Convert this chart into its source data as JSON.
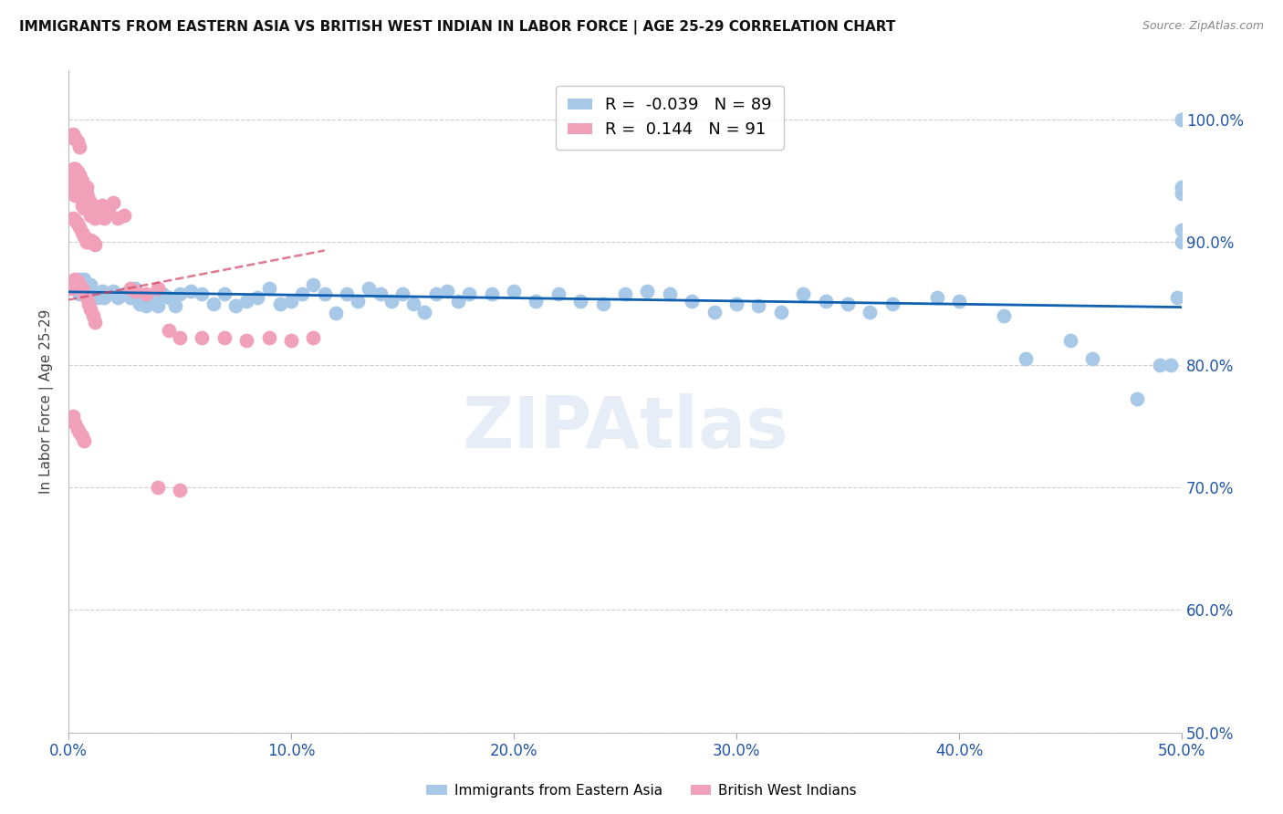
{
  "title": "IMMIGRANTS FROM EASTERN ASIA VS BRITISH WEST INDIAN IN LABOR FORCE | AGE 25-29 CORRELATION CHART",
  "source": "Source: ZipAtlas.com",
  "ylabel": "In Labor Force | Age 25-29",
  "legend_label1": "Immigrants from Eastern Asia",
  "legend_label2": "British West Indians",
  "R1": -0.039,
  "N1": 89,
  "R2": 0.144,
  "N2": 91,
  "color_blue": "#a8c8e8",
  "color_pink": "#f0a0b8",
  "line_blue": "#1060b0",
  "line_pink": "#d04060",
  "xlim": [
    0.0,
    0.5
  ],
  "ylim": [
    0.5,
    1.04
  ],
  "yticks": [
    0.5,
    0.6,
    0.7,
    0.8,
    0.9,
    1.0
  ],
  "xticks": [
    0.0,
    0.1,
    0.2,
    0.3,
    0.4,
    0.5
  ],
  "ytick_labels": [
    "50.0%",
    "60.0%",
    "70.0%",
    "80.0%",
    "90.0%",
    "100.0%"
  ],
  "xtick_labels": [
    "0.0%",
    "10.0%",
    "20.0%",
    "30.0%",
    "40.0%",
    "50.0%"
  ],
  "blue_x": [
    0.003,
    0.004,
    0.005,
    0.005,
    0.006,
    0.007,
    0.008,
    0.008,
    0.009,
    0.01,
    0.012,
    0.013,
    0.015,
    0.016,
    0.018,
    0.02,
    0.022,
    0.025,
    0.028,
    0.03,
    0.032,
    0.035,
    0.038,
    0.04,
    0.042,
    0.045,
    0.048,
    0.05,
    0.055,
    0.06,
    0.065,
    0.07,
    0.075,
    0.08,
    0.085,
    0.09,
    0.095,
    0.1,
    0.105,
    0.11,
    0.115,
    0.12,
    0.125,
    0.13,
    0.135,
    0.14,
    0.145,
    0.15,
    0.155,
    0.16,
    0.165,
    0.17,
    0.175,
    0.18,
    0.19,
    0.2,
    0.21,
    0.22,
    0.23,
    0.24,
    0.25,
    0.26,
    0.27,
    0.28,
    0.29,
    0.3,
    0.31,
    0.32,
    0.33,
    0.34,
    0.35,
    0.36,
    0.37,
    0.39,
    0.4,
    0.42,
    0.43,
    0.45,
    0.46,
    0.48,
    0.49,
    0.495,
    0.498,
    0.5,
    0.5,
    0.5,
    0.5,
    0.5,
    0.5
  ],
  "blue_y": [
    0.868,
    0.862,
    0.87,
    0.858,
    0.863,
    0.87,
    0.862,
    0.858,
    0.86,
    0.865,
    0.858,
    0.855,
    0.86,
    0.855,
    0.858,
    0.86,
    0.855,
    0.858,
    0.855,
    0.862,
    0.85,
    0.848,
    0.852,
    0.848,
    0.858,
    0.855,
    0.848,
    0.858,
    0.86,
    0.858,
    0.85,
    0.858,
    0.848,
    0.852,
    0.855,
    0.862,
    0.85,
    0.852,
    0.858,
    0.865,
    0.858,
    0.842,
    0.858,
    0.852,
    0.862,
    0.858,
    0.852,
    0.858,
    0.85,
    0.843,
    0.858,
    0.86,
    0.852,
    0.858,
    0.858,
    0.86,
    0.852,
    0.858,
    0.852,
    0.85,
    0.858,
    0.86,
    0.858,
    0.852,
    0.843,
    0.85,
    0.848,
    0.843,
    0.858,
    0.852,
    0.85,
    0.843,
    0.85,
    0.855,
    0.852,
    0.84,
    0.805,
    0.82,
    0.805,
    0.772,
    0.8,
    0.8,
    0.855,
    1.0,
    1.0,
    0.945,
    0.94,
    0.91,
    0.9
  ],
  "pink_x": [
    0.001,
    0.002,
    0.002,
    0.002,
    0.003,
    0.003,
    0.003,
    0.004,
    0.004,
    0.004,
    0.005,
    0.005,
    0.005,
    0.005,
    0.006,
    0.006,
    0.006,
    0.006,
    0.007,
    0.007,
    0.007,
    0.007,
    0.008,
    0.008,
    0.008,
    0.009,
    0.009,
    0.01,
    0.01,
    0.011,
    0.012,
    0.013,
    0.014,
    0.015,
    0.016,
    0.018,
    0.02,
    0.022,
    0.025,
    0.028,
    0.03,
    0.035,
    0.04,
    0.045,
    0.05,
    0.06,
    0.07,
    0.08,
    0.09,
    0.1,
    0.11,
    0.002,
    0.003,
    0.004,
    0.005,
    0.006,
    0.007,
    0.008,
    0.009,
    0.01,
    0.011,
    0.012,
    0.002,
    0.003,
    0.004,
    0.005,
    0.006,
    0.007,
    0.008,
    0.003,
    0.004,
    0.005,
    0.006,
    0.007,
    0.008,
    0.009,
    0.01,
    0.011,
    0.012,
    0.002,
    0.003,
    0.004,
    0.005,
    0.04,
    0.05,
    0.002,
    0.003,
    0.004,
    0.005,
    0.006,
    0.007
  ],
  "pink_y": [
    0.862,
    0.952,
    0.942,
    0.985,
    0.96,
    0.945,
    0.938,
    0.948,
    0.955,
    0.942,
    0.942,
    0.945,
    0.95,
    0.955,
    0.945,
    0.938,
    0.93,
    0.942,
    0.942,
    0.938,
    0.928,
    0.932,
    0.945,
    0.94,
    0.932,
    0.935,
    0.928,
    0.932,
    0.922,
    0.93,
    0.92,
    0.928,
    0.922,
    0.93,
    0.92,
    0.924,
    0.932,
    0.92,
    0.922,
    0.862,
    0.86,
    0.858,
    0.862,
    0.828,
    0.822,
    0.822,
    0.822,
    0.82,
    0.822,
    0.82,
    0.822,
    0.96,
    0.96,
    0.958,
    0.955,
    0.95,
    0.945,
    0.9,
    0.9,
    0.902,
    0.9,
    0.898,
    0.92,
    0.918,
    0.915,
    0.912,
    0.908,
    0.905,
    0.9,
    0.87,
    0.868,
    0.865,
    0.862,
    0.858,
    0.855,
    0.85,
    0.845,
    0.84,
    0.835,
    0.988,
    0.985,
    0.982,
    0.978,
    0.7,
    0.698,
    0.758,
    0.752,
    0.748,
    0.745,
    0.742,
    0.738
  ]
}
